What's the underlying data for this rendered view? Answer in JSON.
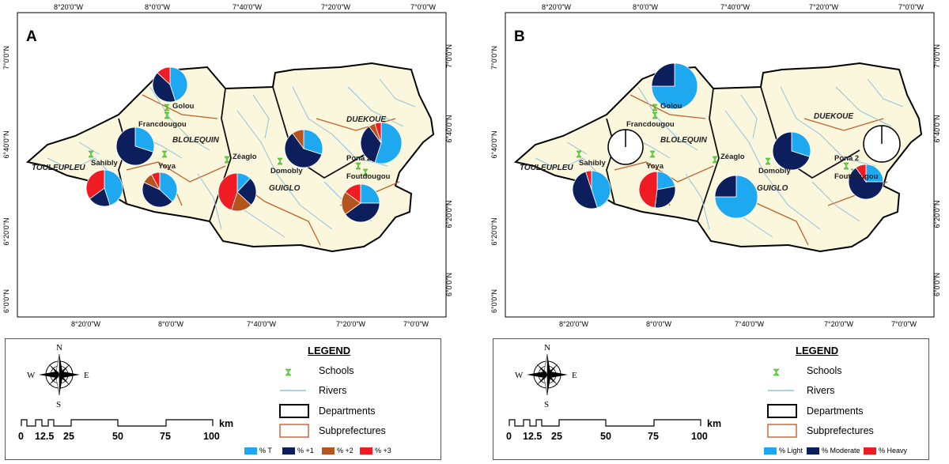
{
  "panels": [
    {
      "letter": "A",
      "x_ticks": [
        "8°20'0\"W",
        "8°0'0\"W",
        "7°40'0\"W",
        "7°20'0\"W",
        "7°0'0\"W"
      ],
      "y_ticks": [
        "7°0'0\"N",
        "6°40'0\"N",
        "6°20'0\"N",
        "6°0'0\"N"
      ],
      "places": [
        "Golou",
        "Francdougou",
        "Sahibly",
        "Yoya",
        "Zéaglo",
        "Domobly",
        "Pona 2",
        "Foutdougou"
      ],
      "departments": [
        "TOULEUPLEU",
        "BLOLEQUIN",
        "GUIGLO",
        "DUEKOUE"
      ],
      "legend": {
        "title": "LEGEND",
        "items": [
          "Schools",
          "Rivers",
          "Departments",
          "Subprefectures"
        ],
        "scale_unit": "km",
        "scale_numbers": [
          "0",
          "12.5",
          "25",
          "50",
          "75",
          "100"
        ],
        "pie_legend": [
          {
            "label": "% T",
            "color": "#1ea8f0"
          },
          {
            "label": "% +1",
            "color": "#0d1e5c"
          },
          {
            "label": "% +2",
            "color": "#b5541c"
          },
          {
            "label": "% +3",
            "color": "#ef1c24"
          }
        ]
      }
    },
    {
      "letter": "B",
      "x_ticks": [
        "8°20'0\"W",
        "8°0'0\"W",
        "7°40'0\"W",
        "7°20'0\"W",
        "7°0'0\"W"
      ],
      "y_ticks": [
        "7°0'0\"N",
        "6°40'0\"N",
        "6°20'0\"N",
        "6°0'0\"N"
      ],
      "places": [
        "Golou",
        "Francdougou",
        "Sahibly",
        "Yoya",
        "Zéaglo",
        "Domobly",
        "Pona 2",
        "Foutdougou"
      ],
      "departments": [
        "TOULEUPLEU",
        "BLOLEQUIN",
        "GUIGLO",
        "DUEKOUE"
      ],
      "legend": {
        "title": "LEGEND",
        "items": [
          "Schools",
          "Rivers",
          "Departments",
          "Subprefectures"
        ],
        "scale_unit": "km",
        "scale_numbers": [
          "0",
          "12.5",
          "25",
          "50",
          "75",
          "100"
        ],
        "pie_legend": [
          {
            "label": "% Light",
            "color": "#1ea8f0"
          },
          {
            "label": "% Moderate",
            "color": "#0d1e5c"
          },
          {
            "label": "% Heavy",
            "color": "#ef1c24"
          }
        ]
      }
    }
  ],
  "pies_a": [
    {
      "site": "Golou",
      "values": [
        45,
        42,
        0,
        13
      ]
    },
    {
      "site": "Francdougou",
      "values": [
        30,
        70,
        0,
        0
      ]
    },
    {
      "site": "Sahibly",
      "values": [
        45,
        20,
        0,
        35
      ]
    },
    {
      "site": "Yoya",
      "values": [
        37,
        45,
        10,
        8
      ]
    },
    {
      "site": "Zéaglo",
      "values": [
        12,
        25,
        18,
        45
      ]
    },
    {
      "site": "Domobly",
      "values": [
        30,
        60,
        10,
        0
      ]
    },
    {
      "site": "Pona 2",
      "values": [
        55,
        35,
        5,
        5
      ]
    },
    {
      "site": "Foutdougou",
      "values": [
        25,
        40,
        20,
        15
      ]
    }
  ],
  "pies_b": [
    {
      "site": "Golou",
      "values": [
        75,
        25,
        0
      ]
    },
    {
      "site": "Francdougou",
      "values": [
        0,
        0,
        0
      ]
    },
    {
      "site": "Sahibly",
      "values": [
        45,
        50,
        5
      ]
    },
    {
      "site": "Yoya",
      "values": [
        22,
        30,
        48
      ]
    },
    {
      "site": "Zéaglo",
      "values": [
        75,
        25,
        0
      ]
    },
    {
      "site": "Domobly",
      "values": [
        30,
        70,
        0
      ]
    },
    {
      "site": "Pona 2",
      "values": [
        0,
        0,
        0
      ]
    },
    {
      "site": "Foutdougou",
      "values": [
        25,
        65,
        10
      ]
    }
  ]
}
